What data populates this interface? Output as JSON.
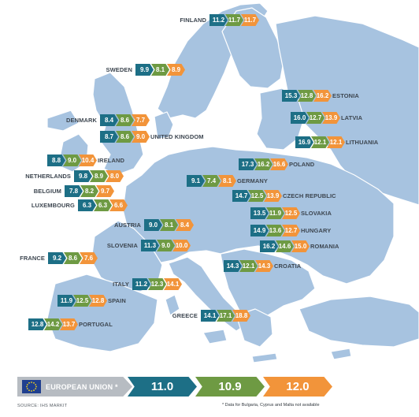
{
  "countries": [
    {
      "name": "FINLAND",
      "values": [
        "11.2",
        "11.7",
        "11.7"
      ]
    },
    {
      "name": "SWEDEN",
      "values": [
        "9.9",
        "8.1",
        "8.9"
      ]
    },
    {
      "name": "ESTONIA",
      "values": [
        "15.3",
        "12.8",
        "16.2"
      ]
    },
    {
      "name": "LATVIA",
      "values": [
        "16.0",
        "12.7",
        "13.9"
      ]
    },
    {
      "name": "DENMARK",
      "values": [
        "8.4",
        "8.6",
        "7.7"
      ]
    },
    {
      "name": "UNITED KINGDOM",
      "values": [
        "8.7",
        "8.6",
        "9.0"
      ]
    },
    {
      "name": "LITHUANIA",
      "values": [
        "16.9",
        "12.1",
        "12.1"
      ]
    },
    {
      "name": "IRELAND",
      "values": [
        "8.8",
        "9.0",
        "10.4"
      ]
    },
    {
      "name": "POLAND",
      "values": [
        "17.3",
        "16.2",
        "16.6"
      ]
    },
    {
      "name": "NETHERLANDS",
      "values": [
        "9.8",
        "8.9",
        "8.0"
      ]
    },
    {
      "name": "GERMANY",
      "values": [
        "9.1",
        "7.4",
        "8.1"
      ]
    },
    {
      "name": "BELGIUM",
      "values": [
        "7.8",
        "8.2",
        "9.7"
      ]
    },
    {
      "name": "CZECH REPUBLIC",
      "values": [
        "14.7",
        "12.5",
        "13.9"
      ]
    },
    {
      "name": "LUXEMBOURG",
      "values": [
        "6.3",
        "6.3",
        "6.6"
      ]
    },
    {
      "name": "SLOVAKIA",
      "values": [
        "13.5",
        "11.9",
        "12.5"
      ]
    },
    {
      "name": "AUSTRIA",
      "values": [
        "9.0",
        "8.1",
        "8.4"
      ]
    },
    {
      "name": "HUNGARY",
      "values": [
        "14.9",
        "13.6",
        "12.7"
      ]
    },
    {
      "name": "SLOVENIA",
      "values": [
        "11.3",
        "9.0",
        "10.0"
      ]
    },
    {
      "name": "ROMANIA",
      "values": [
        "16.2",
        "14.6",
        "15.0"
      ]
    },
    {
      "name": "FRANCE",
      "values": [
        "9.2",
        "8.6",
        "7.6"
      ]
    },
    {
      "name": "CROATIA",
      "values": [
        "14.3",
        "12.1",
        "14.3"
      ]
    },
    {
      "name": "ITALY",
      "values": [
        "11.2",
        "12.3",
        "14.1"
      ]
    },
    {
      "name": "SPAIN",
      "values": [
        "11.9",
        "12.5",
        "12.8"
      ]
    },
    {
      "name": "GREECE",
      "values": [
        "14.1",
        "17.1",
        "18.8"
      ]
    },
    {
      "name": "PORTUGAL",
      "values": [
        "12.8",
        "14.2",
        "13.7"
      ]
    }
  ],
  "summary": {
    "label": "EUROPEAN UNION *",
    "values": [
      "11.0",
      "10.9",
      "12.0"
    ]
  },
  "source": "SOURCE: IHS MARKIT",
  "footnote": "* Data for Bulgaria, Cyprus and Malta not available",
  "colors": {
    "first_value": "#1d6f86",
    "second_value": "#6e9a43",
    "third_value": "#f2943a",
    "land": "#a7c3e0",
    "eu_label_bg": "#b7bcc2",
    "eu_flag": "#1f3f8f",
    "eu_stars": "#f2d21b"
  },
  "icons": {
    "flag": "eu-flag-icon"
  }
}
